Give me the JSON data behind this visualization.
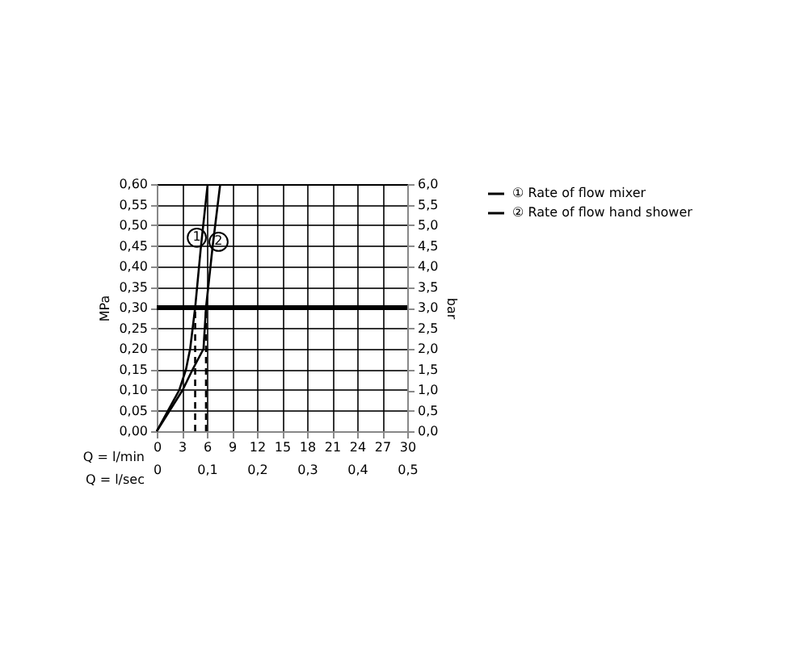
{
  "chart_data": {
    "type": "line",
    "xlabel": "Q = l/min",
    "x2label": "Q = l/sec",
    "ylabel": "MPa",
    "y2label": "bar",
    "xlim": [
      0,
      30
    ],
    "xticks": [
      0,
      3,
      6,
      9,
      12,
      15,
      18,
      21,
      24,
      27,
      30
    ],
    "x2lim": [
      0,
      0.5
    ],
    "x2ticks": [
      {
        "value": 0,
        "label": "0"
      },
      {
        "value": 0.1,
        "label": "0,1"
      },
      {
        "value": 0.2,
        "label": "0,2"
      },
      {
        "value": 0.3,
        "label": "0,3"
      },
      {
        "value": 0.4,
        "label": "0,4"
      },
      {
        "value": 0.5,
        "label": "0,5"
      }
    ],
    "ylim": [
      0,
      0.6
    ],
    "yticks": [
      {
        "value": 0,
        "label": "0,00"
      },
      {
        "value": 0.05,
        "label": "0,05"
      },
      {
        "value": 0.1,
        "label": "0,10"
      },
      {
        "value": 0.15,
        "label": "0,15"
      },
      {
        "value": 0.2,
        "label": "0,20"
      },
      {
        "value": 0.25,
        "label": "0,25"
      },
      {
        "value": 0.3,
        "label": "0,30"
      },
      {
        "value": 0.35,
        "label": "0,35"
      },
      {
        "value": 0.4,
        "label": "0,40"
      },
      {
        "value": 0.45,
        "label": "0,45"
      },
      {
        "value": 0.5,
        "label": "0,50"
      },
      {
        "value": 0.55,
        "label": "0,55"
      },
      {
        "value": 0.6,
        "label": "0,60"
      }
    ],
    "y2lim": [
      0,
      6
    ],
    "y2ticks": [
      {
        "value": 0,
        "label": "0,0"
      },
      {
        "value": 0.5,
        "label": "0,5"
      },
      {
        "value": 1,
        "label": "1,0"
      },
      {
        "value": 1.5,
        "label": "1,5"
      },
      {
        "value": 2,
        "label": "2,0"
      },
      {
        "value": 2.5,
        "label": "2,5"
      },
      {
        "value": 3,
        "label": "3,0"
      },
      {
        "value": 3.5,
        "label": "3,5"
      },
      {
        "value": 4,
        "label": "4,0"
      },
      {
        "value": 4.5,
        "label": "4,5"
      },
      {
        "value": 5,
        "label": "5,0"
      },
      {
        "value": 5.5,
        "label": "5,5"
      },
      {
        "value": 6,
        "label": "6,0"
      }
    ],
    "series": [
      {
        "name": "① Rate of flow mixer",
        "color": "#000000",
        "x": [
          0,
          2.7,
          3.5,
          4.0,
          4.6,
          5.3,
          6.1
        ],
        "values": [
          0,
          0.1,
          0.15,
          0.2,
          0.3,
          0.45,
          0.6
        ]
      },
      {
        "name": "② Rate of flow hand shower",
        "color": "#000000",
        "x": [
          0,
          3.1,
          4.3,
          5.6,
          5.9,
          6.7,
          7.6
        ],
        "values": [
          0,
          0.1,
          0.15,
          0.2,
          0.3,
          0.45,
          0.6
        ]
      },
      {
        "color": "#000000",
        "line_style": "dashed",
        "x": [
          4.6,
          4.6
        ],
        "values": [
          0,
          0.3
        ]
      },
      {
        "color": "#000000",
        "line_style": "dashed",
        "x": [
          5.9,
          5.9
        ],
        "values": [
          0,
          0.3
        ]
      }
    ],
    "ref_lines": [
      {
        "axis": "y",
        "value": 0.3,
        "color": "#000000"
      }
    ],
    "annotations": [
      {
        "text": "1",
        "x": 4.8,
        "y": 0.47
      },
      {
        "text": "2",
        "x": 7.4,
        "y": 0.46
      }
    ],
    "grid": true,
    "legend": "right",
    "line_style": "solid"
  }
}
